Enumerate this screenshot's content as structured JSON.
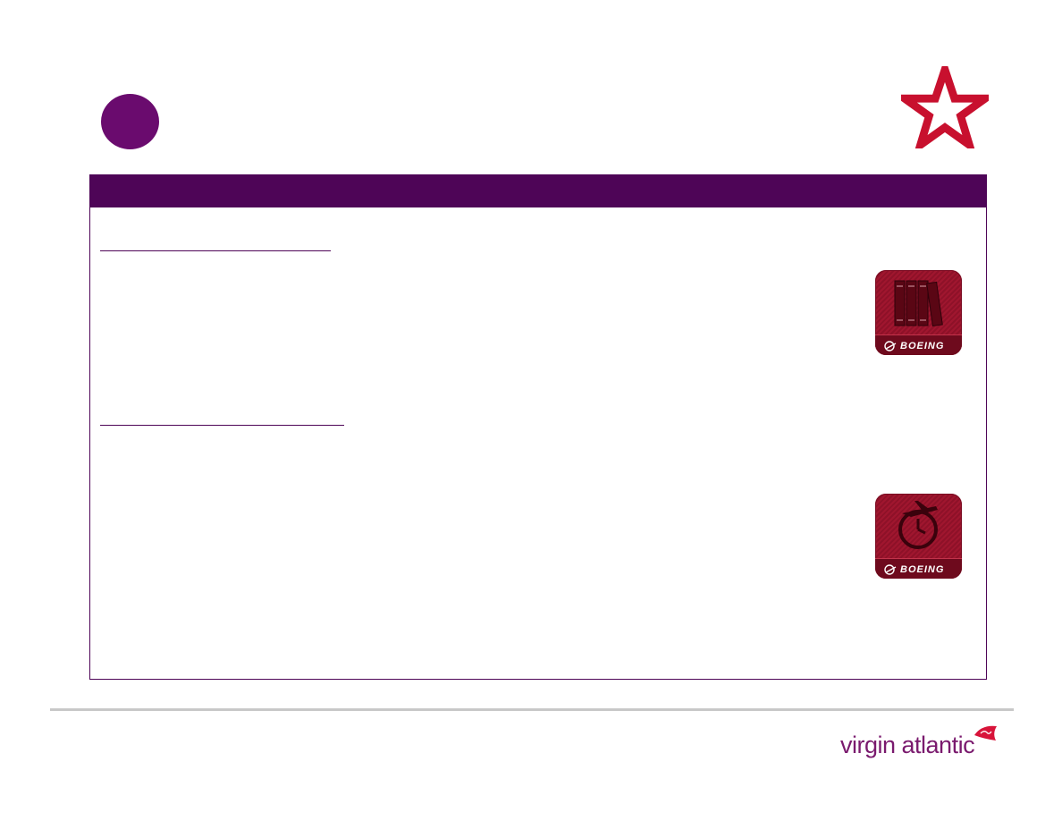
{
  "header": {
    "badge_color": "#6a0b6e",
    "star_icon": "star-outline-icon",
    "star_color": "#c8102e"
  },
  "content": {
    "frame_color": "#4e0557",
    "apps": [
      {
        "icon": "documents-binders-icon",
        "brand": "BOEING"
      },
      {
        "icon": "plane-clock-icon",
        "brand": "BOEING"
      }
    ]
  },
  "footer": {
    "logo_text": "virgin atlantic",
    "logo_color": "#7a1a6e",
    "flag_icon": "virgin-signature-flag-icon"
  }
}
